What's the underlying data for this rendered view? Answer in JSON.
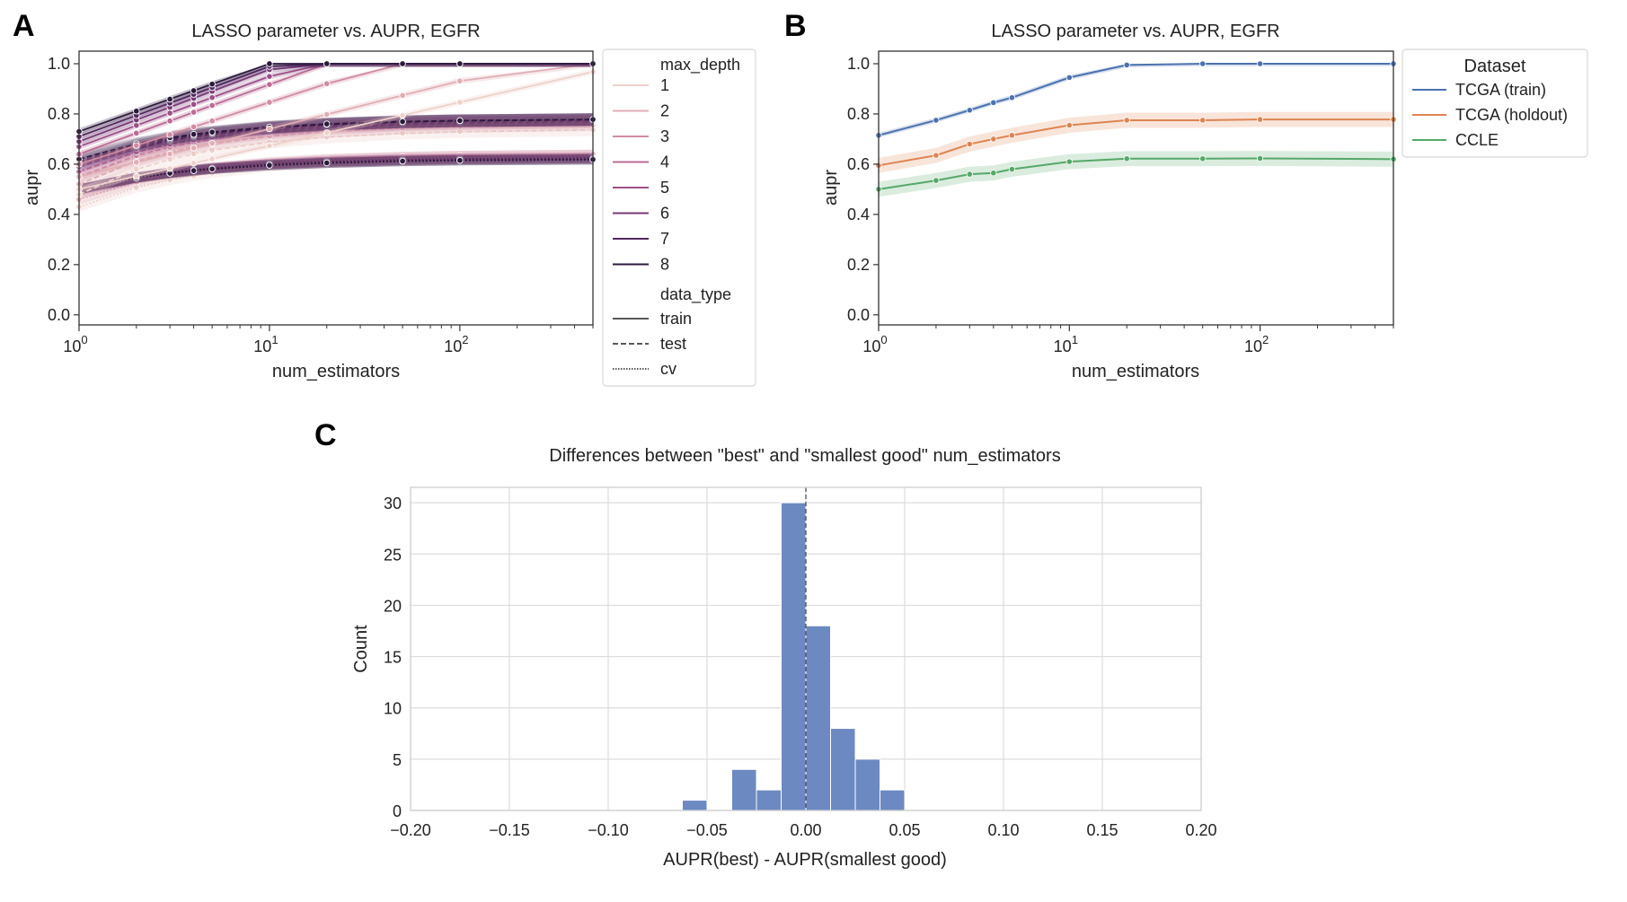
{
  "figure": {
    "panel_letters": [
      "A",
      "B",
      "C"
    ]
  },
  "chart_data": [
    {
      "type": "line",
      "panel": "A",
      "title": "LASSO parameter vs. AUPR, EGFR",
      "xlabel": "num_estimators",
      "ylabel": "aupr",
      "xscale": "log",
      "xlim": [
        1,
        500
      ],
      "ylim": [
        -0.04,
        1.05
      ],
      "x": [
        1,
        2,
        3,
        4,
        5,
        10,
        20,
        50,
        100,
        500
      ],
      "yticks": [
        "0.0",
        "0.2",
        "0.4",
        "0.6",
        "0.8",
        "1.0"
      ],
      "xticks": [
        {
          "base": "10",
          "exp": "0"
        },
        {
          "base": "10",
          "exp": "1"
        },
        {
          "base": "10",
          "exp": "2"
        }
      ],
      "legend": {
        "hue_title": "max_depth",
        "hue_levels": [
          "1",
          "2",
          "3",
          "4",
          "5",
          "6",
          "7",
          "8"
        ],
        "hue_colors": [
          "#eed1cb",
          "#e0aeb4",
          "#d08ca2",
          "#ba6c94",
          "#9b5088",
          "#773a76",
          "#522760",
          "#2c1a3c"
        ],
        "style_title": "data_type",
        "style_levels": [
          "train",
          "test",
          "cv"
        ],
        "placement": "outside right"
      },
      "train_start": [
        0.5,
        0.55,
        0.6,
        0.64,
        0.67,
        0.69,
        0.71,
        0.73
      ],
      "train_rate": [
        0.45,
        0.55,
        0.8,
        1.0,
        1.1,
        1.2,
        1.25,
        1.3
      ],
      "holdout_start": [
        0.48,
        0.52,
        0.55,
        0.57,
        0.59,
        0.6,
        0.61,
        0.62
      ],
      "holdout_end": [
        0.74,
        0.76,
        0.77,
        0.775,
        0.78,
        0.78,
        0.78,
        0.78
      ],
      "cv_start": [
        0.43,
        0.46,
        0.48,
        0.49,
        0.5,
        0.5,
        0.5,
        0.5
      ],
      "cv_end": [
        0.63,
        0.64,
        0.64,
        0.63,
        0.625,
        0.625,
        0.62,
        0.62
      ]
    },
    {
      "type": "line",
      "panel": "B",
      "title": "LASSO parameter vs. AUPR, EGFR",
      "xlabel": "num_estimators",
      "ylabel": "aupr",
      "xscale": "log",
      "xlim": [
        1,
        500
      ],
      "ylim": [
        -0.04,
        1.05
      ],
      "x": [
        1,
        2,
        3,
        4,
        5,
        10,
        20,
        50,
        100,
        500
      ],
      "yticks": [
        "0.0",
        "0.2",
        "0.4",
        "0.6",
        "0.8",
        "1.0"
      ],
      "xticks": [
        {
          "base": "10",
          "exp": "0"
        },
        {
          "base": "10",
          "exp": "1"
        },
        {
          "base": "10",
          "exp": "2"
        }
      ],
      "legend": {
        "title": "Dataset",
        "placement": "outside upper right"
      },
      "series": [
        {
          "name": "TCGA (train)",
          "color": "#4c72b0",
          "band": 0.01,
          "values": [
            0.715,
            0.775,
            0.815,
            0.845,
            0.865,
            0.945,
            0.995,
            1.0,
            1.0,
            1.0
          ]
        },
        {
          "name": "TCGA (holdout)",
          "color": "#dd8452",
          "band": 0.03,
          "values": [
            0.595,
            0.635,
            0.68,
            0.7,
            0.715,
            0.755,
            0.775,
            0.775,
            0.778,
            0.778
          ]
        },
        {
          "name": "CCLE",
          "color": "#55a868",
          "band": 0.03,
          "values": [
            0.5,
            0.535,
            0.56,
            0.565,
            0.58,
            0.61,
            0.622,
            0.622,
            0.623,
            0.62
          ]
        }
      ]
    },
    {
      "type": "bar",
      "panel": "C",
      "subtype": "histogram",
      "title": "Differences between \"best\" and \"smallest good\" num_estimators",
      "xlabel": "AUPR(best) - AUPR(smallest good)",
      "ylabel": "Count",
      "xlim": [
        -0.2,
        0.2
      ],
      "ylim": [
        0,
        31.5
      ],
      "grid": true,
      "bar_color": "#6c89c2",
      "bin_width": 0.0125,
      "bins": [
        {
          "x0": -0.0625,
          "count": 1
        },
        {
          "x0": -0.0375,
          "count": 4
        },
        {
          "x0": -0.025,
          "count": 2
        },
        {
          "x0": -0.0125,
          "count": 30
        },
        {
          "x0": 0.0,
          "count": 18
        },
        {
          "x0": 0.0125,
          "count": 8
        },
        {
          "x0": 0.025,
          "count": 5
        },
        {
          "x0": 0.0375,
          "count": 2
        }
      ],
      "reference_line": 0.0,
      "xticks": [
        "−0.20",
        "−0.15",
        "−0.10",
        "−0.05",
        "0.00",
        "0.05",
        "0.10",
        "0.15",
        "0.20"
      ],
      "xtick_values": [
        -0.2,
        -0.15,
        -0.1,
        -0.05,
        0.0,
        0.05,
        0.1,
        0.15,
        0.2
      ],
      "yticks": [
        "0",
        "5",
        "10",
        "15",
        "20",
        "25",
        "30"
      ],
      "ytick_values": [
        0,
        5,
        10,
        15,
        20,
        25,
        30
      ]
    }
  ]
}
